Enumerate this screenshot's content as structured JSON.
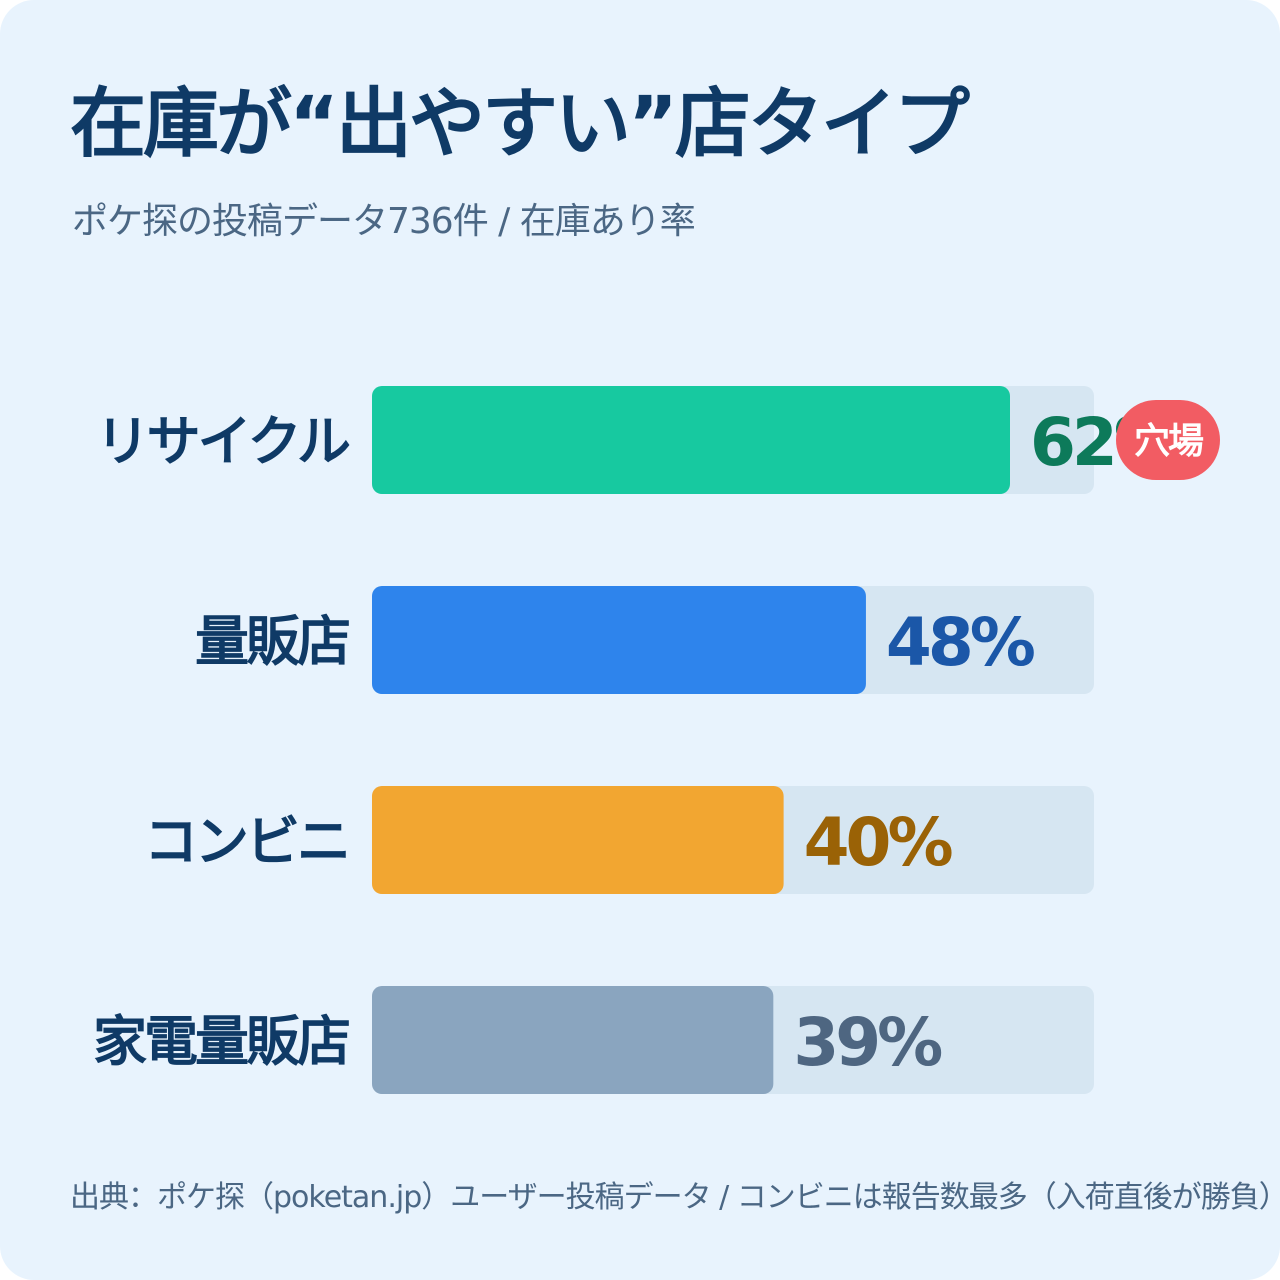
{
  "header": {
    "title": "在庫が“出やすい”店タイプ",
    "subtitle": "ポケ探の投稿データ736件 / 在庫あり率"
  },
  "colors": {
    "background": "#e8f3fd",
    "title": "#0f3a66",
    "track": "#d6e6f2",
    "badge": "#f25c63"
  },
  "chart_data": {
    "type": "bar",
    "orientation": "horizontal",
    "title": "在庫が“出やすい”店タイプ",
    "subtitle": "ポケ探の投稿データ736件 / 在庫あり率",
    "categories": [
      "リサイクル",
      "量販店",
      "コンビニ",
      "家電量販店"
    ],
    "values": [
      62,
      48,
      40,
      39
    ],
    "value_labels": [
      "62%",
      "48%",
      "40%",
      "39%"
    ],
    "bar_colors": [
      "#17c9a0",
      "#2e84ec",
      "#f2a631",
      "#8aa5bf"
    ],
    "label_colors": [
      "#0d7a5a",
      "#1b57a8",
      "#9a6206",
      "#4e6681"
    ],
    "xlim": [
      0,
      100
    ],
    "unit": "%",
    "grid": false,
    "badge": {
      "category": "リサイクル",
      "text": "穴場"
    }
  },
  "footer": {
    "source": "出典：ポケ探（poketan.jp）ユーザー投稿データ / コンビニは報告数最多（入荷直後が勝負）"
  }
}
